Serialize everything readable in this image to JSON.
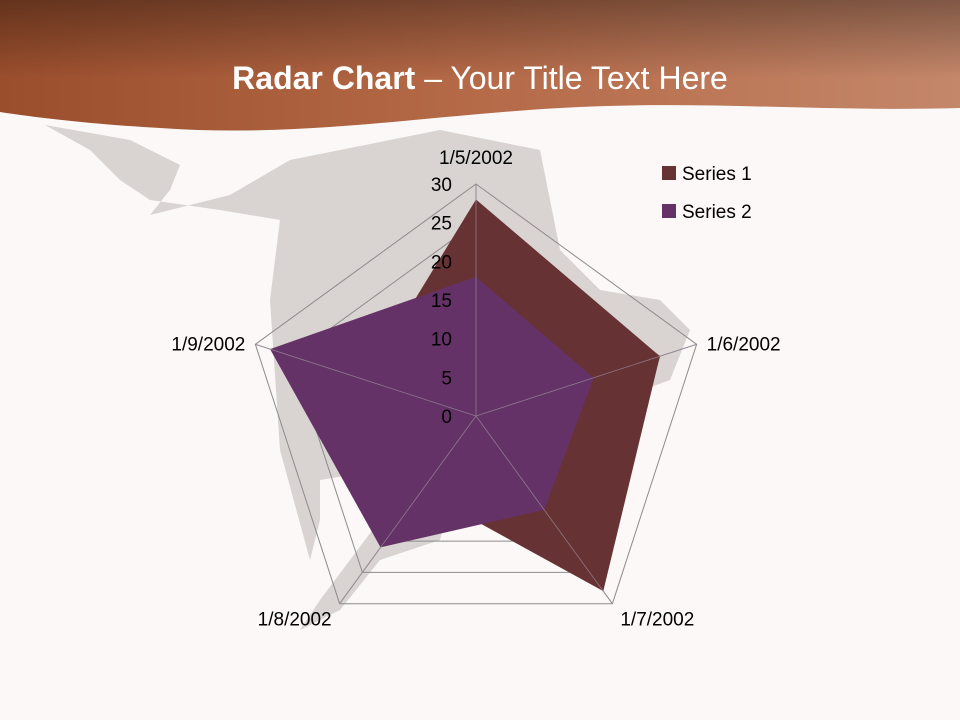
{
  "slide": {
    "title_bold": "Radar Chart",
    "title_rest": " – Your Title Text Here"
  },
  "colors": {
    "header": "#a9603f",
    "series1": "#673233",
    "series2": "#643266",
    "grid": "#8c8c8c"
  },
  "chart_data": {
    "type": "radar",
    "title": "",
    "categories": [
      "1/5/2002",
      "1/6/2002",
      "1/7/2002",
      "1/8/2002",
      "1/9/2002"
    ],
    "axis": {
      "min": 0,
      "max": 30,
      "step": 5,
      "ticks": [
        "0",
        "5",
        "10",
        "15",
        "20",
        "25",
        "30"
      ]
    },
    "grid": true,
    "legend_position": "top-right",
    "series": [
      {
        "name": "Series 1",
        "values": [
          28,
          25,
          28,
          12,
          15
        ],
        "color": "#673233"
      },
      {
        "name": "Series 2",
        "values": [
          18,
          16,
          15,
          21,
          28
        ],
        "color": "#643266"
      }
    ]
  }
}
